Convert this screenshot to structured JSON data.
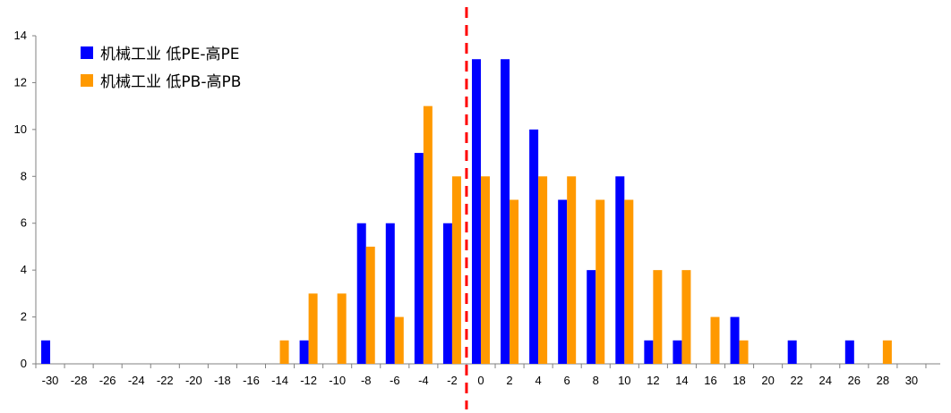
{
  "chart_data": {
    "type": "bar",
    "title": "",
    "xlabel": "",
    "ylabel": "",
    "ylim": [
      0,
      14
    ],
    "yticks": [
      0,
      2,
      4,
      6,
      8,
      10,
      12,
      14
    ],
    "categories": [
      "-30",
      "-28",
      "-26",
      "-24",
      "-22",
      "-20",
      "-18",
      "-16",
      "-14",
      "-12",
      "-10",
      "-8",
      "-6",
      "-4",
      "-2",
      "0",
      "2",
      "4",
      "6",
      "8",
      "10",
      "12",
      "14",
      "16",
      "18",
      "20",
      "22",
      "24",
      "26",
      "28",
      "30"
    ],
    "series": [
      {
        "name": "机械工业 低PE-高PE",
        "color": "#0000ff",
        "values": [
          1,
          0,
          0,
          0,
          0,
          0,
          0,
          0,
          0,
          1,
          0,
          6,
          6,
          9,
          6,
          13,
          13,
          10,
          7,
          4,
          8,
          1,
          1,
          0,
          2,
          0,
          1,
          0,
          1,
          0,
          0
        ]
      },
      {
        "name": "机械工业 低PB-高PB",
        "color": "#ff9900",
        "values": [
          0,
          0,
          0,
          0,
          0,
          0,
          0,
          0,
          1,
          3,
          3,
          5,
          2,
          11,
          8,
          8,
          7,
          8,
          8,
          7,
          7,
          4,
          4,
          2,
          1,
          0,
          0,
          0,
          0,
          1,
          0
        ]
      }
    ],
    "reference_line": {
      "x_category": "0",
      "style": "dashed",
      "color": "#ff0000"
    },
    "grid": false,
    "legend_position": "top-left"
  }
}
